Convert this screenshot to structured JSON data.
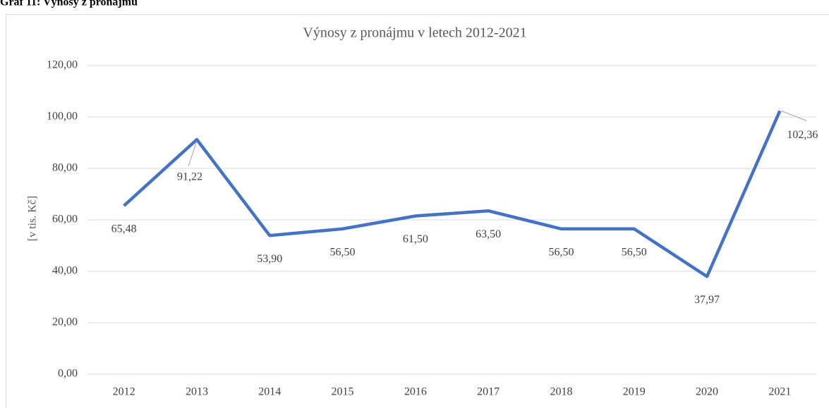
{
  "caption": "Graf 11: Výnosy z pronájmu",
  "chart_data": {
    "type": "line",
    "title": "Výnosy z pronájmu v letech 2012-2021",
    "y_label": "[v tis. Kč]",
    "categories": [
      "2012",
      "2013",
      "2014",
      "2015",
      "2016",
      "2017",
      "2018",
      "2019",
      "2020",
      "2021"
    ],
    "values": [
      65.48,
      91.22,
      53.9,
      56.5,
      61.5,
      63.5,
      56.5,
      56.5,
      37.97,
      102.36
    ],
    "value_labels": [
      "65,48",
      "91,22",
      "53,90",
      "56,50",
      "61,50",
      "63,50",
      "56,50",
      "56,50",
      "37,97",
      "102,36"
    ],
    "color": "#4472c4",
    "ylim": [
      0,
      120
    ],
    "yticks": [
      {
        "value": 0,
        "label": "0,00"
      },
      {
        "value": 20,
        "label": "20,00"
      },
      {
        "value": 40,
        "label": "40,00"
      },
      {
        "value": 60,
        "label": "60,00"
      },
      {
        "value": 80,
        "label": "80,00"
      },
      {
        "value": 100,
        "label": "100,00"
      },
      {
        "value": 120,
        "label": "120,00"
      }
    ],
    "grid": true
  }
}
